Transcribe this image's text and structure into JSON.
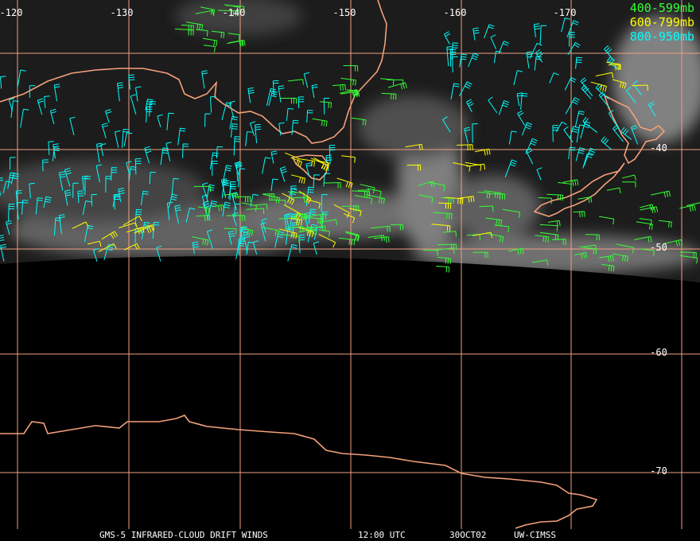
{
  "map": {
    "longitude_labels": [
      "-120",
      "-130",
      "-140",
      "-150",
      "-160",
      "-170"
    ],
    "latitude_labels": [
      "-40",
      "-50",
      "-60",
      "-70"
    ],
    "legend": [
      {
        "label": "400-599mb",
        "color": "#33ff33"
      },
      {
        "label": "600-799mb",
        "color": "#ffff00"
      },
      {
        "label": "800-950mb",
        "color": "#00ffff"
      }
    ],
    "footer": [
      "GMS-5 INFRARED-CLOUD DRIFT WINDS",
      "12:00 UTC",
      "30OCT02",
      "UW-CIMSS"
    ]
  }
}
